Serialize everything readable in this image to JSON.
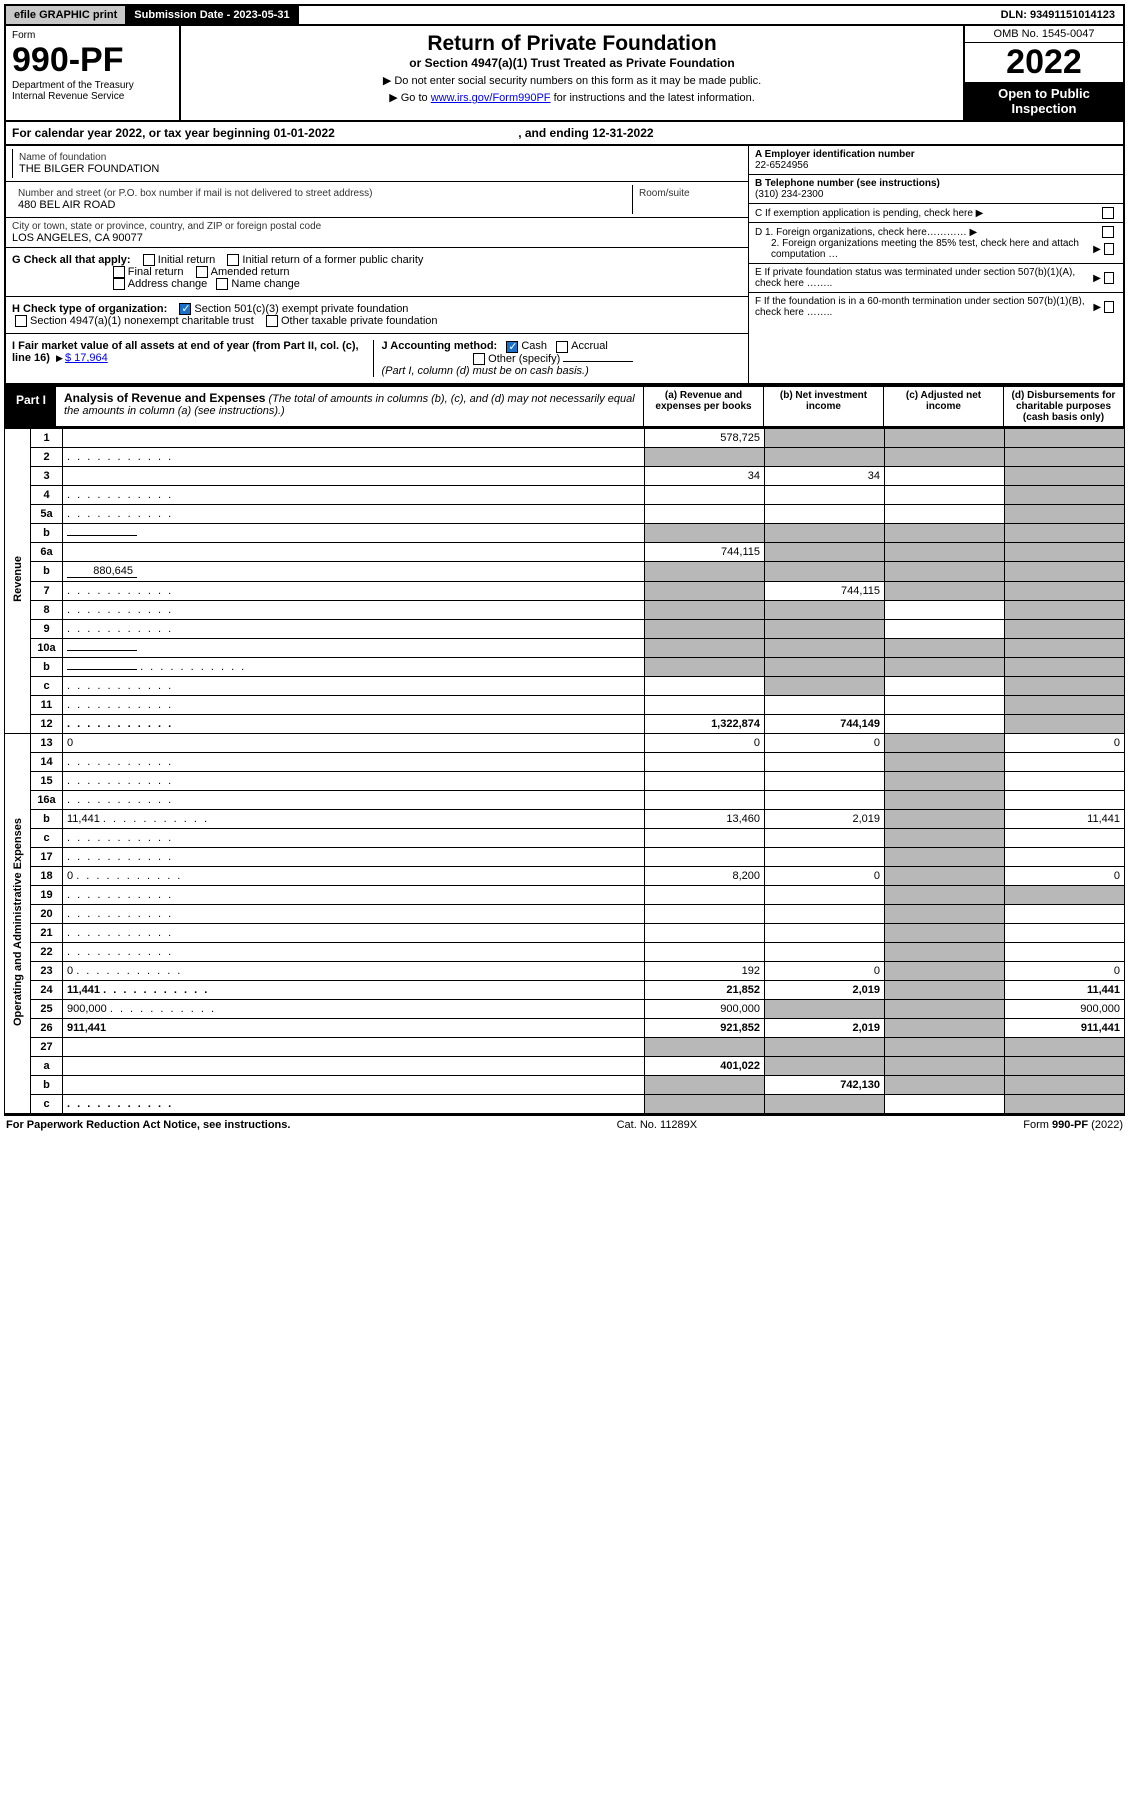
{
  "topbar": {
    "efile": "efile GRAPHIC print",
    "submission": "Submission Date - 2023-05-31",
    "dln": "DLN: 93491151014123"
  },
  "header": {
    "form_label": "Form",
    "form_number": "990-PF",
    "dept": "Department of the Treasury",
    "irs": "Internal Revenue Service",
    "title": "Return of Private Foundation",
    "subtitle": "or Section 4947(a)(1) Trust Treated as Private Foundation",
    "instr1": "▶ Do not enter social security numbers on this form as it may be made public.",
    "instr2_pre": "▶ Go to ",
    "instr2_link": "www.irs.gov/Form990PF",
    "instr2_post": " for instructions and the latest information.",
    "omb": "OMB No. 1545-0047",
    "year": "2022",
    "open": "Open to Public Inspection"
  },
  "cal_year": {
    "pre": "For calendar year 2022, or tax year beginning ",
    "begin": "01-01-2022",
    "mid": ", and ending ",
    "end": "12-31-2022"
  },
  "info": {
    "name_label": "Name of foundation",
    "name": "THE BILGER FOUNDATION",
    "addr_label": "Number and street (or P.O. box number if mail is not delivered to street address)",
    "addr": "480 BEL AIR ROAD",
    "room_label": "Room/suite",
    "city_label": "City or town, state or province, country, and ZIP or foreign postal code",
    "city": "LOS ANGELES, CA  90077",
    "ein_label": "A Employer identification number",
    "ein": "22-6524956",
    "phone_label": "B Telephone number (see instructions)",
    "phone": "(310) 234-2300",
    "c_label": "C If exemption application is pending, check here",
    "d1_label": "D 1. Foreign organizations, check here…………",
    "d2_label": "2. Foreign organizations meeting the 85% test, check here and attach computation …",
    "e_label": "E  If private foundation status was terminated under section 507(b)(1)(A), check here ……..",
    "f_label": "F  If the foundation is in a 60-month termination under section 507(b)(1)(B), check here …….."
  },
  "g": {
    "label": "G Check all that apply:",
    "opts": [
      "Initial return",
      "Initial return of a former public charity",
      "Final return",
      "Amended return",
      "Address change",
      "Name change"
    ]
  },
  "h": {
    "label": "H Check type of organization:",
    "opt1": "Section 501(c)(3) exempt private foundation",
    "opt2": "Section 4947(a)(1) nonexempt charitable trust",
    "opt3": "Other taxable private foundation"
  },
  "i": {
    "label": "I Fair market value of all assets at end of year (from Part II, col. (c), line 16)",
    "value": "$  17,964"
  },
  "j": {
    "label": "J Accounting method:",
    "opts": [
      "Cash",
      "Accrual",
      "Other (specify)"
    ],
    "note": "(Part I, column (d) must be on cash basis.)"
  },
  "part1": {
    "label": "Part I",
    "title": "Analysis of Revenue and Expenses",
    "title_note": "(The total of amounts in columns (b), (c), and (d) may not necessarily equal the amounts in column (a) (see instructions).)",
    "colA": "(a)   Revenue and expenses per books",
    "colB": "(b)   Net investment income",
    "colC": "(c)   Adjusted net income",
    "colD": "(d)   Disbursements for charitable purposes (cash basis only)"
  },
  "side": {
    "revenue": "Revenue",
    "expenses": "Operating and Administrative Expenses"
  },
  "rows": [
    {
      "n": "1",
      "d": "",
      "a": "578,725",
      "b": "",
      "c": "",
      "shadeB": true,
      "shadeC": true,
      "shadeD": true
    },
    {
      "n": "2",
      "d": "",
      "a": "",
      "b": "",
      "c": "",
      "shadeA": true,
      "shadeB": true,
      "shadeC": true,
      "shadeD": true,
      "dots": true
    },
    {
      "n": "3",
      "d": "",
      "a": "34",
      "b": "34",
      "c": "",
      "shadeD": true
    },
    {
      "n": "4",
      "d": "",
      "a": "",
      "b": "",
      "c": "",
      "shadeD": true,
      "dots": true
    },
    {
      "n": "5a",
      "d": "",
      "a": "",
      "b": "",
      "c": "",
      "shadeD": true,
      "dots": true
    },
    {
      "n": "b",
      "d": "",
      "a": "",
      "b": "",
      "c": "",
      "shadeA": true,
      "shadeB": true,
      "shadeC": true,
      "shadeD": true,
      "inline": true
    },
    {
      "n": "6a",
      "d": "",
      "a": "744,115",
      "b": "",
      "c": "",
      "shadeB": true,
      "shadeC": true,
      "shadeD": true
    },
    {
      "n": "b",
      "d": "",
      "a": "",
      "b": "",
      "c": "",
      "shadeA": true,
      "shadeB": true,
      "shadeC": true,
      "shadeD": true,
      "inline": true,
      "inlineval": "880,645"
    },
    {
      "n": "7",
      "d": "",
      "a": "",
      "b": "744,115",
      "c": "",
      "shadeA": true,
      "shadeC": true,
      "shadeD": true,
      "dots": true
    },
    {
      "n": "8",
      "d": "",
      "a": "",
      "b": "",
      "c": "",
      "shadeA": true,
      "shadeB": true,
      "shadeD": true,
      "dots": true
    },
    {
      "n": "9",
      "d": "",
      "a": "",
      "b": "",
      "c": "",
      "shadeA": true,
      "shadeB": true,
      "shadeD": true,
      "dots": true
    },
    {
      "n": "10a",
      "d": "",
      "a": "",
      "b": "",
      "c": "",
      "shadeA": true,
      "shadeB": true,
      "shadeC": true,
      "shadeD": true,
      "inline": true
    },
    {
      "n": "b",
      "d": "",
      "a": "",
      "b": "",
      "c": "",
      "shadeA": true,
      "shadeB": true,
      "shadeC": true,
      "shadeD": true,
      "inline": true,
      "dots": true
    },
    {
      "n": "c",
      "d": "",
      "a": "",
      "b": "",
      "c": "",
      "shadeB": true,
      "shadeD": true,
      "dots": true
    },
    {
      "n": "11",
      "d": "",
      "a": "",
      "b": "",
      "c": "",
      "shadeD": true,
      "dots": true
    },
    {
      "n": "12",
      "d": "",
      "a": "1,322,874",
      "b": "744,149",
      "c": "",
      "shadeD": true,
      "bold": true,
      "dots": true
    },
    {
      "n": "13",
      "d": "0",
      "a": "0",
      "b": "0",
      "c": "",
      "shadeC": true
    },
    {
      "n": "14",
      "d": "",
      "a": "",
      "b": "",
      "c": "",
      "shadeC": true,
      "dots": true
    },
    {
      "n": "15",
      "d": "",
      "a": "",
      "b": "",
      "c": "",
      "shadeC": true,
      "dots": true
    },
    {
      "n": "16a",
      "d": "",
      "a": "",
      "b": "",
      "c": "",
      "shadeC": true,
      "dots": true
    },
    {
      "n": "b",
      "d": "11,441",
      "a": "13,460",
      "b": "2,019",
      "c": "",
      "shadeC": true,
      "dots": true
    },
    {
      "n": "c",
      "d": "",
      "a": "",
      "b": "",
      "c": "",
      "shadeC": true,
      "dots": true
    },
    {
      "n": "17",
      "d": "",
      "a": "",
      "b": "",
      "c": "",
      "shadeC": true,
      "dots": true
    },
    {
      "n": "18",
      "d": "0",
      "a": "8,200",
      "b": "0",
      "c": "",
      "shadeC": true,
      "dots": true
    },
    {
      "n": "19",
      "d": "",
      "a": "",
      "b": "",
      "c": "",
      "shadeC": true,
      "shadeD": true,
      "dots": true
    },
    {
      "n": "20",
      "d": "",
      "a": "",
      "b": "",
      "c": "",
      "shadeC": true,
      "dots": true
    },
    {
      "n": "21",
      "d": "",
      "a": "",
      "b": "",
      "c": "",
      "shadeC": true,
      "dots": true
    },
    {
      "n": "22",
      "d": "",
      "a": "",
      "b": "",
      "c": "",
      "shadeC": true,
      "dots": true
    },
    {
      "n": "23",
      "d": "0",
      "a": "192",
      "b": "0",
      "c": "",
      "shadeC": true,
      "dots": true
    },
    {
      "n": "24",
      "d": "11,441",
      "a": "21,852",
      "b": "2,019",
      "c": "",
      "shadeC": true,
      "bold": true,
      "dots": true
    },
    {
      "n": "25",
      "d": "900,000",
      "a": "900,000",
      "b": "",
      "c": "",
      "shadeB": true,
      "shadeC": true,
      "dots": true
    },
    {
      "n": "26",
      "d": "911,441",
      "a": "921,852",
      "b": "2,019",
      "c": "",
      "shadeC": true,
      "bold": true
    },
    {
      "n": "27",
      "d": "",
      "a": "",
      "b": "",
      "c": "",
      "shadeA": true,
      "shadeB": true,
      "shadeC": true,
      "shadeD": true
    },
    {
      "n": "a",
      "d": "",
      "a": "401,022",
      "b": "",
      "c": "",
      "shadeB": true,
      "shadeC": true,
      "shadeD": true,
      "bold": true
    },
    {
      "n": "b",
      "d": "",
      "a": "",
      "b": "742,130",
      "c": "",
      "shadeA": true,
      "shadeC": true,
      "shadeD": true,
      "bold": true
    },
    {
      "n": "c",
      "d": "",
      "a": "",
      "b": "",
      "c": "",
      "shadeA": true,
      "shadeB": true,
      "shadeD": true,
      "bold": true,
      "dots": true
    }
  ],
  "footer": {
    "left": "For Paperwork Reduction Act Notice, see instructions.",
    "mid": "Cat. No. 11289X",
    "right": "Form 990-PF (2022)"
  },
  "colors": {
    "shade": "#b8b8b8",
    "black": "#000000",
    "link": "#0000ee",
    "check": "#1a6fc9"
  }
}
